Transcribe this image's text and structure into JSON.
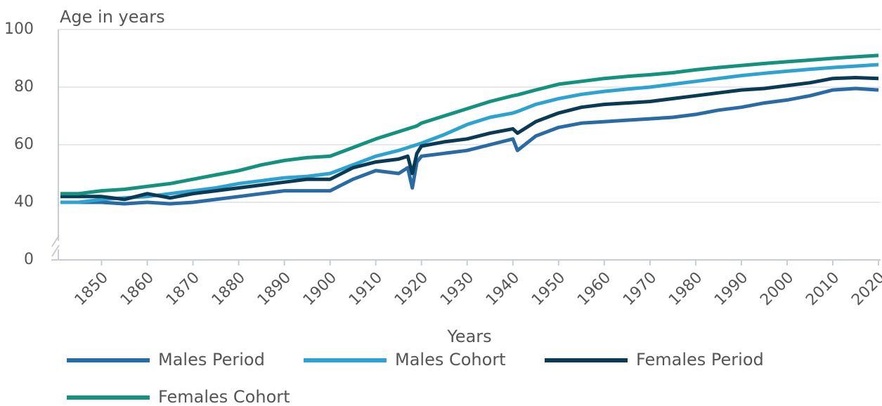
{
  "chart_data": {
    "type": "line",
    "y_axis_label": "Age in years",
    "x_axis_label": "Years",
    "x": [
      1841,
      1845,
      1850,
      1855,
      1860,
      1865,
      1870,
      1875,
      1880,
      1885,
      1890,
      1895,
      1900,
      1905,
      1910,
      1915,
      1917,
      1918,
      1919,
      1920,
      1925,
      1930,
      1935,
      1940,
      1941,
      1945,
      1950,
      1955,
      1960,
      1965,
      1970,
      1975,
      1980,
      1985,
      1990,
      1995,
      2000,
      2005,
      2010,
      2015,
      2020
    ],
    "series": [
      {
        "name": "Males Period",
        "color": "#2a6ba3",
        "values": [
          40,
          40,
          40,
          39,
          40,
          39,
          40,
          41,
          42,
          43,
          44,
          44,
          44,
          48,
          51,
          50,
          52,
          45,
          54,
          56,
          57,
          58,
          60,
          62,
          58,
          63,
          66,
          67.5,
          68,
          68.5,
          69,
          69.5,
          70.5,
          72,
          73,
          74.5,
          75.5,
          77,
          79,
          79.5,
          79
        ]
      },
      {
        "name": "Males Cohort",
        "color": "#2ea3d0",
        "values": [
          40,
          40,
          41,
          41.5,
          42,
          43,
          44,
          45,
          46.5,
          47.5,
          48.5,
          49,
          50,
          53,
          56,
          58,
          59,
          59.5,
          60,
          60.5,
          63.5,
          67,
          69.5,
          71,
          71.5,
          74,
          76,
          77.5,
          78.5,
          79.3,
          80,
          81,
          82,
          83,
          84,
          84.8,
          85.5,
          86.2,
          86.8,
          87.3,
          87.8
        ]
      },
      {
        "name": "Females Period",
        "color": "#0b3a55",
        "values": [
          42,
          42,
          42,
          41,
          43,
          41.5,
          43,
          44,
          45,
          46,
          47,
          48,
          48,
          52,
          54,
          55,
          56,
          50,
          57,
          59.5,
          61,
          62,
          64,
          65.5,
          64,
          68,
          71,
          73,
          74,
          74.5,
          75,
          76,
          77,
          78,
          79,
          79.5,
          80.5,
          81.5,
          83,
          83.3,
          83
        ]
      },
      {
        "name": "Females Cohort",
        "color": "#14927f",
        "values": [
          43,
          43,
          44,
          44.5,
          45.5,
          46.5,
          48,
          49.5,
          51,
          53,
          54.5,
          55.5,
          56,
          59,
          62,
          64.5,
          65.5,
          66,
          66.5,
          67.5,
          70,
          72.5,
          75,
          77,
          77.3,
          79,
          81,
          82,
          83,
          83.7,
          84.3,
          85,
          86,
          86.8,
          87.5,
          88.2,
          88.8,
          89.4,
          90,
          90.5,
          91
        ]
      }
    ],
    "xlim": [
      1841,
      2020
    ],
    "xticks": [
      1850,
      1860,
      1870,
      1880,
      1890,
      1900,
      1910,
      1920,
      1930,
      1940,
      1950,
      1960,
      1970,
      1980,
      1990,
      2000,
      2010,
      2020
    ],
    "ylim": [
      0,
      100
    ],
    "y_break": [
      0,
      40
    ],
    "yticks": [
      0,
      40,
      60,
      80,
      100
    ],
    "grid": true
  }
}
